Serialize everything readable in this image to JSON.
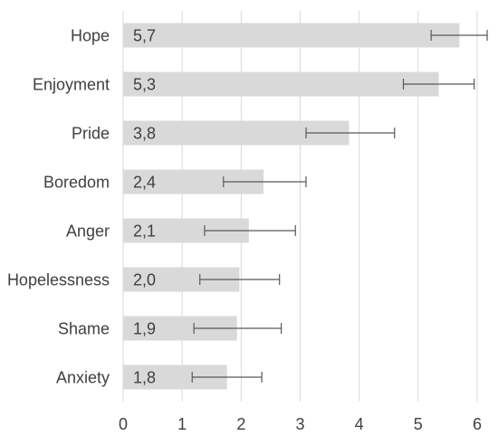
{
  "chart_data": {
    "type": "bar",
    "orientation": "horizontal",
    "categories": [
      "Hope",
      "Enjoyment",
      "Pride",
      "Boredom",
      "Anger",
      "Hopelessness",
      "Shame",
      "Anxiety"
    ],
    "values": [
      5.7,
      5.35,
      3.83,
      2.38,
      2.13,
      1.97,
      1.93,
      1.76
    ],
    "value_labels": [
      "5,7",
      "5,3",
      "3,8",
      "2,4",
      "2,1",
      "2,0",
      "1,9",
      "1,8"
    ],
    "error_low": [
      5.22,
      4.75,
      3.1,
      1.7,
      1.38,
      1.3,
      1.2,
      1.17
    ],
    "error_high": [
      6.17,
      5.95,
      4.6,
      3.1,
      2.92,
      2.65,
      2.68,
      2.35
    ],
    "xlim": [
      0,
      6.2
    ],
    "xticks": [
      "0",
      "1",
      "2",
      "3",
      "4",
      "5",
      "6"
    ],
    "xtick_values": [
      0,
      1,
      2,
      3,
      4,
      5,
      6
    ],
    "grid": true,
    "bar_color": "#d9d9d9",
    "title": "",
    "xlabel": "",
    "ylabel": ""
  }
}
